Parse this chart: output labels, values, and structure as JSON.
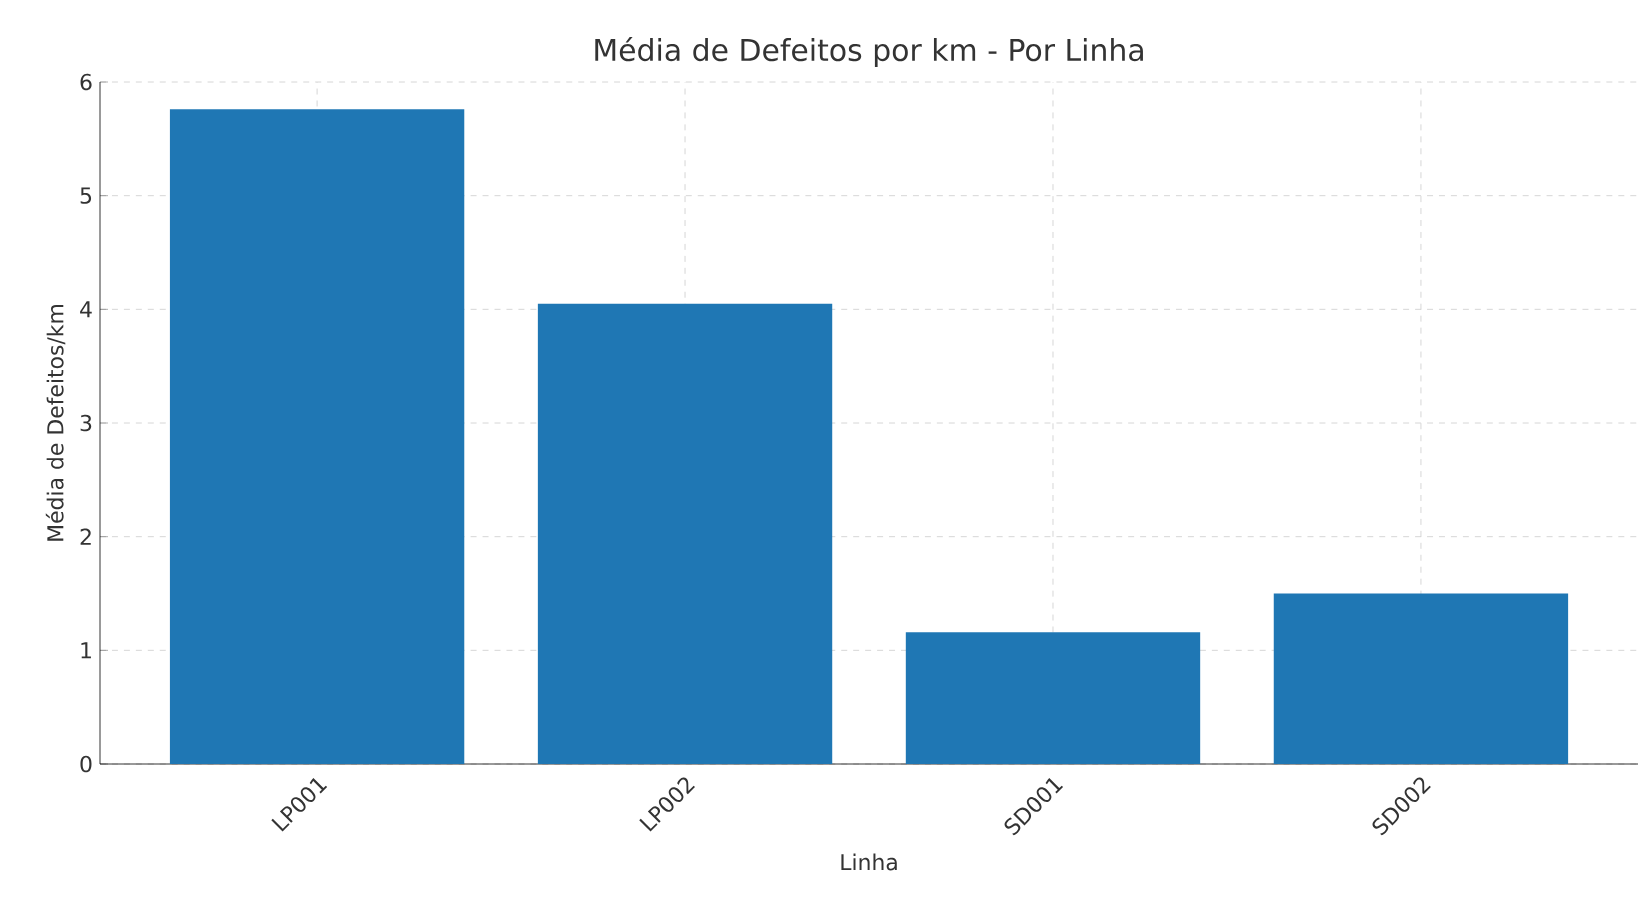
{
  "chart_data": {
    "type": "bar",
    "title": "Média de Defeitos por km - Por Linha",
    "xlabel": "Linha",
    "ylabel": "Média de Defeitos/km",
    "categories": [
      "LP001",
      "LP002",
      "SD001",
      "SD002"
    ],
    "values": [
      5.76,
      4.05,
      1.16,
      1.5
    ],
    "color": "#1f77b4",
    "ylim": [
      0,
      6
    ],
    "yticks": [
      0,
      1,
      2,
      3,
      4,
      5,
      6
    ],
    "grid": true
  }
}
